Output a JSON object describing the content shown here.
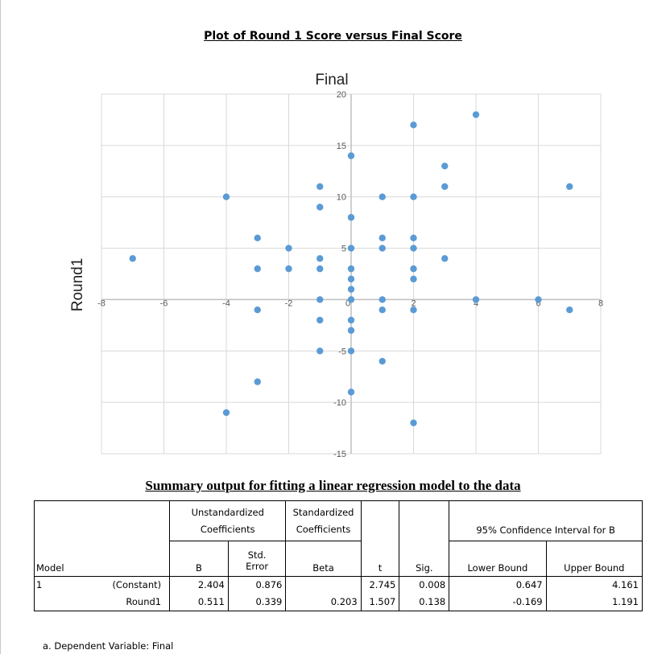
{
  "chart_data": {
    "type": "scatter",
    "title": "Plot of Round 1 Score versus Final Score",
    "xlabel": "Round1",
    "ylabel": "Final",
    "xlim": [
      -8,
      8
    ],
    "ylim": [
      -15,
      20
    ],
    "xticks": [
      -8,
      -6,
      -4,
      -2,
      0,
      2,
      4,
      6,
      8
    ],
    "yticks": [
      -15,
      -10,
      -5,
      0,
      5,
      10,
      15,
      20
    ],
    "grid": true,
    "legend": "none",
    "marker_color": "#5b9bd5",
    "points": [
      {
        "x": -7,
        "y": 4
      },
      {
        "x": -4,
        "y": 10
      },
      {
        "x": -4,
        "y": -11
      },
      {
        "x": -3,
        "y": 6
      },
      {
        "x": -3,
        "y": 3
      },
      {
        "x": -3,
        "y": -1
      },
      {
        "x": -3,
        "y": -8
      },
      {
        "x": -2,
        "y": 5
      },
      {
        "x": -2,
        "y": 3
      },
      {
        "x": -1,
        "y": 11
      },
      {
        "x": -1,
        "y": 9
      },
      {
        "x": -1,
        "y": 4
      },
      {
        "x": -1,
        "y": 3
      },
      {
        "x": -1,
        "y": 0
      },
      {
        "x": -1,
        "y": -2
      },
      {
        "x": -1,
        "y": -5
      },
      {
        "x": 0,
        "y": 14
      },
      {
        "x": 0,
        "y": 8
      },
      {
        "x": 0,
        "y": 5
      },
      {
        "x": 0,
        "y": 3
      },
      {
        "x": 0,
        "y": 2
      },
      {
        "x": 0,
        "y": 1
      },
      {
        "x": 0,
        "y": 0
      },
      {
        "x": 0,
        "y": -2
      },
      {
        "x": 0,
        "y": -3
      },
      {
        "x": 0,
        "y": -5
      },
      {
        "x": 0,
        "y": -9
      },
      {
        "x": 1,
        "y": 10
      },
      {
        "x": 1,
        "y": 6
      },
      {
        "x": 1,
        "y": 5
      },
      {
        "x": 1,
        "y": 0
      },
      {
        "x": 1,
        "y": -1
      },
      {
        "x": 1,
        "y": -6
      },
      {
        "x": 2,
        "y": 17
      },
      {
        "x": 2,
        "y": 10
      },
      {
        "x": 2,
        "y": 6
      },
      {
        "x": 2,
        "y": 5
      },
      {
        "x": 2,
        "y": 3
      },
      {
        "x": 2,
        "y": 2
      },
      {
        "x": 2,
        "y": -1
      },
      {
        "x": 2,
        "y": -12
      },
      {
        "x": 3,
        "y": 13
      },
      {
        "x": 3,
        "y": 11
      },
      {
        "x": 3,
        "y": 4
      },
      {
        "x": 4,
        "y": 18
      },
      {
        "x": 4,
        "y": 0
      },
      {
        "x": 6,
        "y": 0
      },
      {
        "x": 7,
        "y": 11
      },
      {
        "x": 7,
        "y": -1
      }
    ]
  },
  "table": {
    "title": "Summary output for fitting a linear regression model to the data",
    "header": {
      "unstd_line1": "Unstandardized",
      "unstd_line2": "Coefficients",
      "std_line1": "Standardized",
      "std_line2": "Coefficients",
      "ci": "95% Confidence Interval for B",
      "model": "Model",
      "b": "B",
      "se_line1": "Std.",
      "se_line2": "Error",
      "beta": "Beta",
      "t": "t",
      "sig": "Sig.",
      "lower": "Lower Bound",
      "upper": "Upper Bound"
    },
    "rows": [
      {
        "model": "1",
        "term": "(Constant)",
        "b": "2.404",
        "se": "0.876",
        "beta": "",
        "t": "2.745",
        "sig": "0.008",
        "lower": "0.647",
        "upper": "4.161"
      },
      {
        "model": "",
        "term": "Round1",
        "b": "0.511",
        "se": "0.339",
        "beta": "0.203",
        "t": "1.507",
        "sig": "0.138",
        "lower": "-0.169",
        "upper": "1.191"
      }
    ],
    "footnote": "a. Dependent Variable: Final"
  }
}
